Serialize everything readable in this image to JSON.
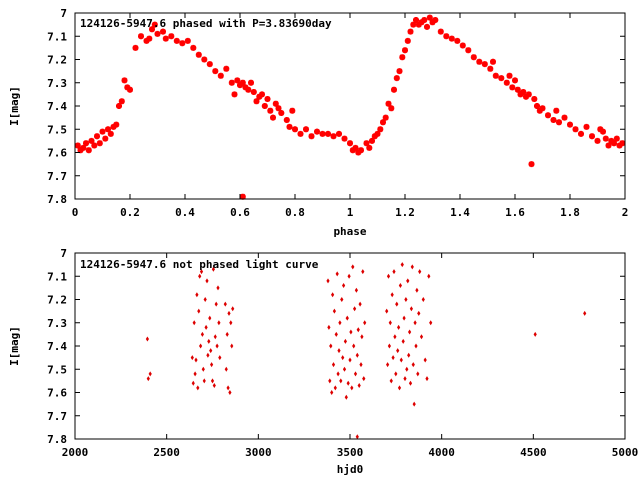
{
  "chart_data": [
    {
      "type": "scatter",
      "title": "124126-5947.6 phased with P=3.83690day",
      "xlabel": "phase",
      "ylabel": "I[mag]",
      "xlim": [
        0,
        2
      ],
      "ylim": [
        7.8,
        7.0
      ],
      "y_inverted": true,
      "marker": "star",
      "color": "#ff0000",
      "grid": false,
      "xticks": [
        "0",
        "0.2",
        "0.4",
        "0.6",
        "0.8",
        "1",
        "1.2",
        "1.4",
        "1.6",
        "1.8",
        "2"
      ],
      "yticks": [
        "7",
        "7.1",
        "7.2",
        "7.3",
        "7.4",
        "7.5",
        "7.6",
        "7.7",
        "7.8"
      ],
      "points": [
        [
          0.01,
          7.57
        ],
        [
          0.02,
          7.59
        ],
        [
          0.03,
          7.58
        ],
        [
          0.04,
          7.56
        ],
        [
          0.05,
          7.59
        ],
        [
          0.06,
          7.55
        ],
        [
          0.07,
          7.57
        ],
        [
          0.08,
          7.53
        ],
        [
          0.09,
          7.56
        ],
        [
          0.1,
          7.51
        ],
        [
          0.11,
          7.54
        ],
        [
          0.12,
          7.5
        ],
        [
          0.13,
          7.52
        ],
        [
          0.14,
          7.49
        ],
        [
          0.15,
          7.48
        ],
        [
          0.16,
          7.4
        ],
        [
          0.17,
          7.38
        ],
        [
          0.18,
          7.29
        ],
        [
          0.19,
          7.32
        ],
        [
          0.2,
          7.33
        ],
        [
          0.22,
          7.15
        ],
        [
          0.24,
          7.1
        ],
        [
          0.26,
          7.12
        ],
        [
          0.27,
          7.11
        ],
        [
          0.28,
          7.07
        ],
        [
          0.29,
          7.05
        ],
        [
          0.3,
          7.09
        ],
        [
          0.32,
          7.08
        ],
        [
          0.33,
          7.11
        ],
        [
          0.35,
          7.1
        ],
        [
          0.37,
          7.12
        ],
        [
          0.39,
          7.13
        ],
        [
          0.41,
          7.12
        ],
        [
          0.43,
          7.15
        ],
        [
          0.45,
          7.18
        ],
        [
          0.47,
          7.2
        ],
        [
          0.49,
          7.22
        ],
        [
          0.51,
          7.25
        ],
        [
          0.53,
          7.27
        ],
        [
          0.55,
          7.24
        ],
        [
          0.57,
          7.3
        ],
        [
          0.58,
          7.35
        ],
        [
          0.59,
          7.29
        ],
        [
          0.6,
          7.31
        ],
        [
          0.61,
          7.3
        ],
        [
          0.62,
          7.32
        ],
        [
          0.63,
          7.33
        ],
        [
          0.64,
          7.3
        ],
        [
          0.65,
          7.34
        ],
        [
          0.66,
          7.38
        ],
        [
          0.67,
          7.36
        ],
        [
          0.68,
          7.35
        ],
        [
          0.69,
          7.4
        ],
        [
          0.7,
          7.37
        ],
        [
          0.71,
          7.42
        ],
        [
          0.72,
          7.45
        ],
        [
          0.73,
          7.39
        ],
        [
          0.74,
          7.41
        ],
        [
          0.75,
          7.43
        ],
        [
          0.77,
          7.46
        ],
        [
          0.78,
          7.49
        ],
        [
          0.79,
          7.42
        ],
        [
          0.8,
          7.5
        ],
        [
          0.82,
          7.52
        ],
        [
          0.84,
          7.5
        ],
        [
          0.86,
          7.53
        ],
        [
          0.88,
          7.51
        ],
        [
          0.9,
          7.52
        ],
        [
          0.92,
          7.52
        ],
        [
          0.94,
          7.53
        ],
        [
          0.96,
          7.52
        ],
        [
          0.98,
          7.54
        ],
        [
          1.0,
          7.56
        ],
        [
          1.01,
          7.59
        ],
        [
          1.02,
          7.58
        ],
        [
          1.03,
          7.6
        ],
        [
          1.04,
          7.59
        ],
        [
          1.06,
          7.56
        ],
        [
          1.07,
          7.58
        ],
        [
          1.08,
          7.55
        ],
        [
          1.09,
          7.53
        ],
        [
          1.1,
          7.52
        ],
        [
          1.11,
          7.5
        ],
        [
          1.12,
          7.47
        ],
        [
          1.13,
          7.45
        ],
        [
          1.14,
          7.39
        ],
        [
          1.15,
          7.41
        ],
        [
          1.16,
          7.33
        ],
        [
          1.17,
          7.28
        ],
        [
          1.18,
          7.25
        ],
        [
          1.19,
          7.19
        ],
        [
          1.2,
          7.16
        ],
        [
          1.21,
          7.12
        ],
        [
          1.22,
          7.08
        ],
        [
          1.23,
          7.05
        ],
        [
          1.24,
          7.03
        ],
        [
          1.25,
          7.05
        ],
        [
          1.26,
          7.04
        ],
        [
          1.27,
          7.03
        ],
        [
          1.28,
          7.06
        ],
        [
          1.29,
          7.02
        ],
        [
          1.3,
          7.04
        ],
        [
          1.31,
          7.03
        ],
        [
          1.33,
          7.08
        ],
        [
          1.35,
          7.1
        ],
        [
          1.37,
          7.11
        ],
        [
          1.39,
          7.12
        ],
        [
          1.41,
          7.14
        ],
        [
          1.43,
          7.16
        ],
        [
          1.45,
          7.19
        ],
        [
          1.47,
          7.21
        ],
        [
          1.49,
          7.22
        ],
        [
          1.51,
          7.24
        ],
        [
          1.52,
          7.21
        ],
        [
          1.53,
          7.27
        ],
        [
          1.55,
          7.28
        ],
        [
          1.57,
          7.3
        ],
        [
          1.58,
          7.27
        ],
        [
          1.59,
          7.32
        ],
        [
          1.6,
          7.29
        ],
        [
          1.61,
          7.33
        ],
        [
          1.62,
          7.35
        ],
        [
          1.63,
          7.34
        ],
        [
          1.64,
          7.36
        ],
        [
          1.65,
          7.35
        ],
        [
          1.66,
          7.65
        ],
        [
          1.67,
          7.37
        ],
        [
          1.68,
          7.4
        ],
        [
          1.69,
          7.42
        ],
        [
          1.7,
          7.41
        ],
        [
          1.72,
          7.44
        ],
        [
          1.74,
          7.46
        ],
        [
          1.75,
          7.42
        ],
        [
          1.76,
          7.47
        ],
        [
          1.78,
          7.45
        ],
        [
          1.8,
          7.48
        ],
        [
          1.82,
          7.5
        ],
        [
          1.84,
          7.52
        ],
        [
          1.86,
          7.49
        ],
        [
          1.88,
          7.53
        ],
        [
          1.9,
          7.55
        ],
        [
          1.91,
          7.5
        ],
        [
          1.92,
          7.51
        ],
        [
          1.93,
          7.54
        ],
        [
          1.94,
          7.57
        ],
        [
          1.95,
          7.55
        ],
        [
          1.96,
          7.56
        ],
        [
          1.97,
          7.54
        ],
        [
          1.98,
          7.57
        ],
        [
          1.99,
          7.56
        ],
        [
          0.61,
          7.79
        ]
      ]
    },
    {
      "type": "scatter",
      "title": "124126-5947.6 not phased light curve",
      "xlabel": "hjd0",
      "ylabel": "I[mag]",
      "xlim": [
        2000,
        5000
      ],
      "ylim": [
        7.8,
        7.0
      ],
      "y_inverted": true,
      "marker": "diamond",
      "color": "#dd0000",
      "grid": false,
      "xticks": [
        "2000",
        "2500",
        "3000",
        "3500",
        "4000",
        "4500",
        "5000"
      ],
      "yticks": [
        "7",
        "7.1",
        "7.2",
        "7.3",
        "7.4",
        "7.5",
        "7.6",
        "7.7",
        "7.8"
      ],
      "points": [
        [
          2395,
          7.37
        ],
        [
          2400,
          7.54
        ],
        [
          2410,
          7.52
        ],
        [
          2640,
          7.45
        ],
        [
          2645,
          7.56
        ],
        [
          2650,
          7.3
        ],
        [
          2655,
          7.52
        ],
        [
          2660,
          7.46
        ],
        [
          2665,
          7.18
        ],
        [
          2670,
          7.58
        ],
        [
          2675,
          7.25
        ],
        [
          2680,
          7.1
        ],
        [
          2685,
          7.4
        ],
        [
          2690,
          7.08
        ],
        [
          2695,
          7.35
        ],
        [
          2700,
          7.5
        ],
        [
          2705,
          7.55
        ],
        [
          2710,
          7.2
        ],
        [
          2715,
          7.32
        ],
        [
          2720,
          7.12
        ],
        [
          2725,
          7.44
        ],
        [
          2730,
          7.38
        ],
        [
          2735,
          7.28
        ],
        [
          2740,
          7.42
        ],
        [
          2745,
          7.48
        ],
        [
          2750,
          7.55
        ],
        [
          2755,
          7.07
        ],
        [
          2760,
          7.57
        ],
        [
          2765,
          7.36
        ],
        [
          2770,
          7.22
        ],
        [
          2775,
          7.4
        ],
        [
          2780,
          7.15
        ],
        [
          2785,
          7.3
        ],
        [
          2790,
          7.45
        ],
        [
          2820,
          7.22
        ],
        [
          2825,
          7.5
        ],
        [
          2830,
          7.35
        ],
        [
          2835,
          7.58
        ],
        [
          2840,
          7.26
        ],
        [
          2845,
          7.6
        ],
        [
          2850,
          7.3
        ],
        [
          2855,
          7.4
        ],
        [
          2860,
          7.24
        ],
        [
          3380,
          7.12
        ],
        [
          3385,
          7.32
        ],
        [
          3390,
          7.55
        ],
        [
          3395,
          7.4
        ],
        [
          3400,
          7.6
        ],
        [
          3405,
          7.18
        ],
        [
          3410,
          7.48
        ],
        [
          3415,
          7.25
        ],
        [
          3420,
          7.58
        ],
        [
          3425,
          7.35
        ],
        [
          3430,
          7.09
        ],
        [
          3435,
          7.52
        ],
        [
          3440,
          7.42
        ],
        [
          3445,
          7.3
        ],
        [
          3450,
          7.55
        ],
        [
          3455,
          7.2
        ],
        [
          3460,
          7.45
        ],
        [
          3465,
          7.14
        ],
        [
          3470,
          7.5
        ],
        [
          3475,
          7.38
        ],
        [
          3480,
          7.62
        ],
        [
          3485,
          7.28
        ],
        [
          3490,
          7.56
        ],
        [
          3495,
          7.1
        ],
        [
          3500,
          7.46
        ],
        [
          3505,
          7.34
        ],
        [
          3510,
          7.58
        ],
        [
          3515,
          7.06
        ],
        [
          3520,
          7.4
        ],
        [
          3525,
          7.24
        ],
        [
          3530,
          7.52
        ],
        [
          3535,
          7.16
        ],
        [
          3540,
          7.44
        ],
        [
          3545,
          7.33
        ],
        [
          3550,
          7.57
        ],
        [
          3555,
          7.22
        ],
        [
          3560,
          7.48
        ],
        [
          3565,
          7.36
        ],
        [
          3570,
          7.08
        ],
        [
          3575,
          7.54
        ],
        [
          3580,
          7.3
        ],
        [
          3540,
          7.79
        ],
        [
          3700,
          7.25
        ],
        [
          3705,
          7.48
        ],
        [
          3710,
          7.1
        ],
        [
          3715,
          7.4
        ],
        [
          3720,
          7.3
        ],
        [
          3725,
          7.55
        ],
        [
          3730,
          7.18
        ],
        [
          3735,
          7.45
        ],
        [
          3740,
          7.08
        ],
        [
          3745,
          7.36
        ],
        [
          3750,
          7.52
        ],
        [
          3755,
          7.22
        ],
        [
          3760,
          7.42
        ],
        [
          3765,
          7.32
        ],
        [
          3770,
          7.58
        ],
        [
          3775,
          7.14
        ],
        [
          3780,
          7.46
        ],
        [
          3785,
          7.05
        ],
        [
          3790,
          7.38
        ],
        [
          3795,
          7.28
        ],
        [
          3800,
          7.54
        ],
        [
          3805,
          7.2
        ],
        [
          3810,
          7.5
        ],
        [
          3815,
          7.12
        ],
        [
          3820,
          7.44
        ],
        [
          3825,
          7.34
        ],
        [
          3830,
          7.56
        ],
        [
          3835,
          7.24
        ],
        [
          3840,
          7.06
        ],
        [
          3845,
          7.48
        ],
        [
          3850,
          7.65
        ],
        [
          3855,
          7.3
        ],
        [
          3860,
          7.4
        ],
        [
          3865,
          7.16
        ],
        [
          3870,
          7.52
        ],
        [
          3875,
          7.26
        ],
        [
          3880,
          7.08
        ],
        [
          3890,
          7.36
        ],
        [
          3900,
          7.2
        ],
        [
          3910,
          7.46
        ],
        [
          3920,
          7.54
        ],
        [
          3930,
          7.1
        ],
        [
          3940,
          7.3
        ],
        [
          4510,
          7.35
        ],
        [
          4780,
          7.26
        ]
      ]
    }
  ]
}
